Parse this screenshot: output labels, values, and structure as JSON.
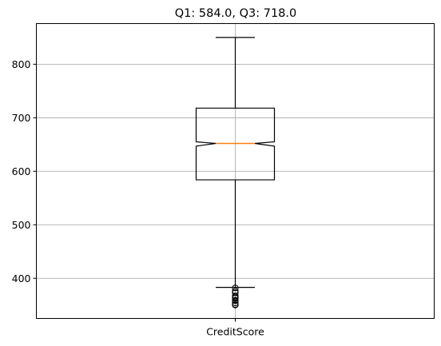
{
  "chart_data": {
    "type": "boxplot",
    "title": "Q1: 584.0, Q3: 718.0",
    "categories": [
      "CreditScore"
    ],
    "notched": true,
    "grid": true,
    "ylim": [
      325,
      876
    ],
    "yticks": [
      400,
      500,
      600,
      700,
      800
    ],
    "ytick_labels": [
      "400",
      "500",
      "600",
      "700",
      "800"
    ],
    "boxes": [
      {
        "name": "CreditScore",
        "q1": 584.0,
        "median": 652.0,
        "q3": 718.0,
        "notch_low": 647.0,
        "notch_high": 655.0,
        "whisker_low": 383.0,
        "whisker_high": 850.0,
        "fliers": [
          350,
          351,
          354,
          358,
          359,
          363,
          365,
          367,
          373,
          376,
          382
        ]
      }
    ],
    "colors": {
      "box": "#000000",
      "median": "#ff7f0e",
      "grid": "#b0b0b0"
    }
  }
}
